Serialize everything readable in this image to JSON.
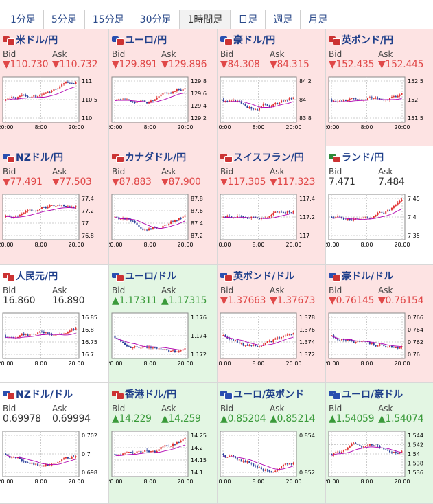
{
  "tabs": [
    {
      "label": "1分足",
      "active": false
    },
    {
      "label": "5分足",
      "active": false
    },
    {
      "label": "15分足",
      "active": false
    },
    {
      "label": "30分足",
      "active": false
    },
    {
      "label": "1時間足",
      "active": true
    },
    {
      "label": "日足",
      "active": false
    },
    {
      "label": "週足",
      "active": false
    },
    {
      "label": "月足",
      "active": false
    }
  ],
  "labels": {
    "bid": "Bid",
    "ask": "Ask"
  },
  "x_ticks": [
    "20:00",
    "8:00",
    "20:00"
  ],
  "pairs": [
    {
      "name": "米ドル/円",
      "bid": "▼110.730",
      "ask": "▼110.732",
      "dir": "down",
      "bg": "red",
      "flags": [
        "#c33",
        "#c33"
      ],
      "yticks": [
        "111",
        "110.5",
        "110"
      ],
      "seed": 1,
      "trend": "up"
    },
    {
      "name": "ユーロ/円",
      "bid": "▼129.891",
      "ask": "▼129.896",
      "dir": "down",
      "bg": "red",
      "flags": [
        "#2a4fb0",
        "#c33"
      ],
      "yticks": [
        "129.8",
        "129.6",
        "129.4",
        "129.2"
      ],
      "seed": 2,
      "trend": "up"
    },
    {
      "name": "豪ドル/円",
      "bid": "▼84.308",
      "ask": "▼84.315",
      "dir": "down",
      "bg": "red",
      "flags": [
        "#2a4fb0",
        "#c33"
      ],
      "yticks": [
        "84.2",
        "84",
        "83.8"
      ],
      "seed": 3,
      "trend": "vup"
    },
    {
      "name": "英ポンド/円",
      "bid": "▼152.435",
      "ask": "▼152.445",
      "dir": "down",
      "bg": "red",
      "flags": [
        "#c33",
        "#c33"
      ],
      "yticks": [
        "152.5",
        "152",
        "151.5"
      ],
      "seed": 4,
      "trend": "up"
    },
    {
      "name": "NZドル/円",
      "bid": "▼77.491",
      "ask": "▼77.503",
      "dir": "down",
      "bg": "red",
      "flags": [
        "#2a4fb0",
        "#c33"
      ],
      "yticks": [
        "77.4",
        "77.2",
        "77",
        "76.8"
      ],
      "seed": 5,
      "trend": "up"
    },
    {
      "name": "カナダドル/円",
      "bid": "▼87.883",
      "ask": "▼87.900",
      "dir": "down",
      "bg": "red",
      "flags": [
        "#c33",
        "#c33"
      ],
      "yticks": [
        "87.8",
        "87.6",
        "87.4",
        "87.2"
      ],
      "seed": 6,
      "trend": "vup"
    },
    {
      "name": "スイスフラン/円",
      "bid": "▼117.305",
      "ask": "▼117.323",
      "dir": "down",
      "bg": "red",
      "flags": [
        "#c33",
        "#c33"
      ],
      "yticks": [
        "117.4",
        "117.2",
        "117"
      ],
      "seed": 7,
      "trend": "up"
    },
    {
      "name": "ランド/円",
      "bid": "7.471",
      "ask": "7.484",
      "dir": "flat",
      "bg": "white",
      "flags": [
        "#2f8a3a",
        "#c33"
      ],
      "yticks": [
        "7.45",
        "7.4",
        "7.35"
      ],
      "seed": 8,
      "trend": "up"
    },
    {
      "name": "人民元/円",
      "bid": "16.860",
      "ask": "16.890",
      "dir": "flat",
      "bg": "white",
      "flags": [
        "#c33",
        "#c33"
      ],
      "yticks": [
        "16.85",
        "16.8",
        "16.75",
        "16.7"
      ],
      "seed": 9,
      "trend": "up"
    },
    {
      "name": "ユーロ/ドル",
      "bid": "▲1.17311",
      "ask": "▲1.17315",
      "dir": "up",
      "bg": "green",
      "flags": [
        "#2a4fb0",
        "#c33"
      ],
      "yticks": [
        "1.176",
        "1.174",
        "1.172"
      ],
      "seed": 10,
      "trend": "down"
    },
    {
      "name": "英ポンド/ドル",
      "bid": "▼1.37663",
      "ask": "▼1.37673",
      "dir": "down",
      "bg": "red",
      "flags": [
        "#2a4fb0",
        "#c33"
      ],
      "yticks": [
        "1.378",
        "1.376",
        "1.374",
        "1.372"
      ],
      "seed": 11,
      "trend": "vdown"
    },
    {
      "name": "豪ドル/ドル",
      "bid": "▼0.76145",
      "ask": "▼0.76154",
      "dir": "down",
      "bg": "red",
      "flags": [
        "#2a4fb0",
        "#c33"
      ],
      "yticks": [
        "0.766",
        "0.764",
        "0.762",
        "0.76"
      ],
      "seed": 12,
      "trend": "down"
    },
    {
      "name": "NZドル/ドル",
      "bid": "0.69978",
      "ask": "0.69994",
      "dir": "flat",
      "bg": "white",
      "flags": [
        "#2a4fb0",
        "#c33"
      ],
      "yticks": [
        "0.702",
        "0.7",
        "0.698"
      ],
      "seed": 13,
      "trend": "down"
    },
    {
      "name": "香港ドル/円",
      "bid": "▲14.229",
      "ask": "▲14.259",
      "dir": "up",
      "bg": "green",
      "flags": [
        "#c33",
        "#c33"
      ],
      "yticks": [
        "14.25",
        "14.2",
        "14.15",
        "14.1"
      ],
      "seed": 14,
      "trend": "up"
    },
    {
      "name": "ユーロ/英ポンド",
      "bid": "▲0.85204",
      "ask": "▲0.85214",
      "dir": "up",
      "bg": "green",
      "flags": [
        "#2a4fb0",
        "#2a4fb0"
      ],
      "yticks": [
        "0.854",
        "0.852"
      ],
      "seed": 15,
      "trend": "down"
    },
    {
      "name": "ユーロ/豪ドル",
      "bid": "▲1.54059",
      "ask": "▲1.54074",
      "dir": "up",
      "bg": "green",
      "flags": [
        "#2a4fb0",
        "#2a4fb0"
      ],
      "yticks": [
        "1.544",
        "1.542",
        "1.54",
        "1.538",
        "1.536"
      ],
      "seed": 16,
      "trend": "flat"
    }
  ],
  "colors": {
    "candle_up": "#e03030",
    "candle_down": "#2a3f9a",
    "ma": "#b000b0",
    "grid": "#cccccc"
  }
}
